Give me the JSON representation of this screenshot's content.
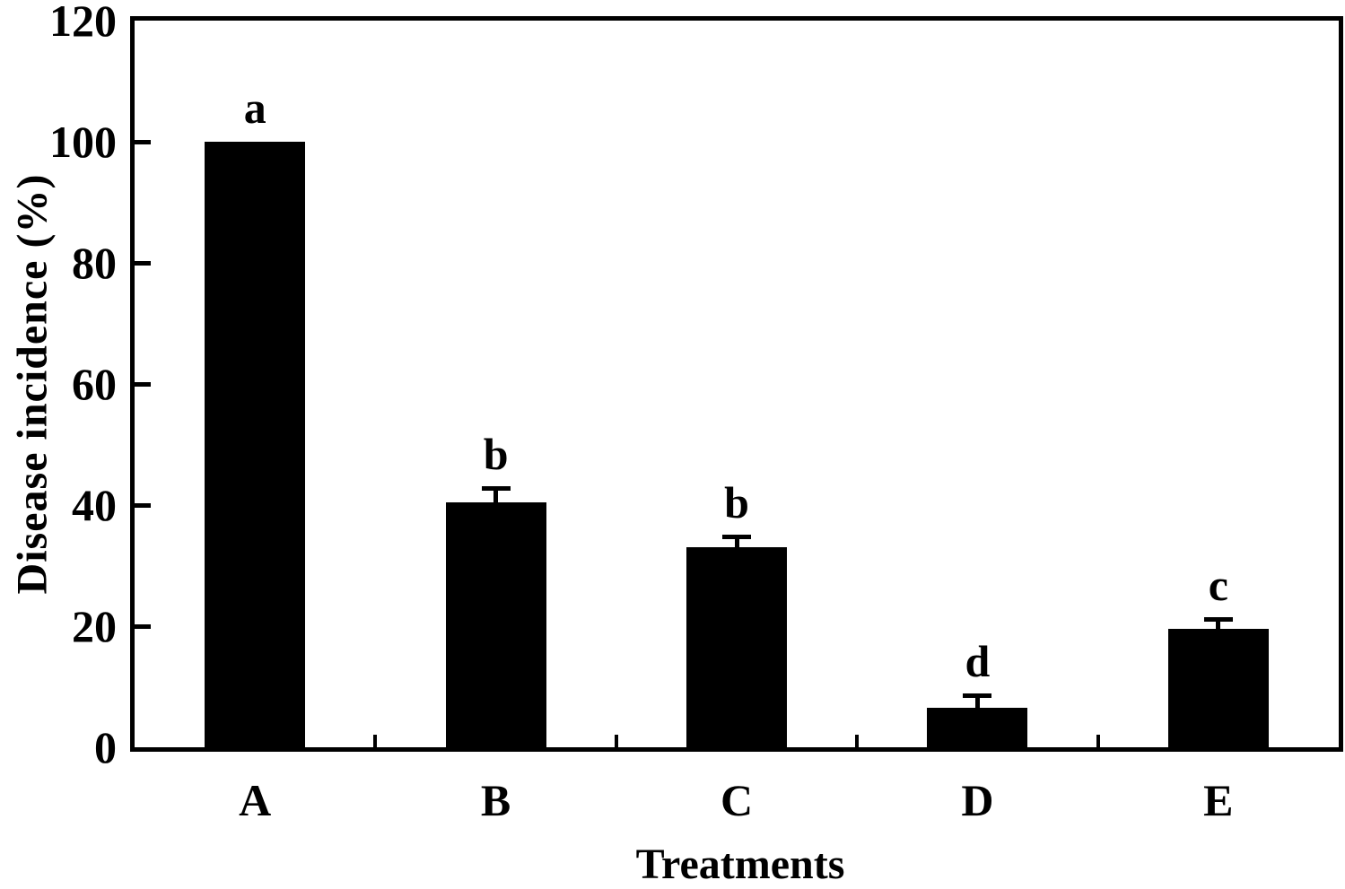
{
  "figure": {
    "background_color": "#ffffff",
    "ink_color": "#000000"
  },
  "chart_data": {
    "type": "bar",
    "title": "",
    "xlabel": "Treatments",
    "ylabel": "Disease incidence (%)",
    "categories": [
      "A",
      "B",
      "C",
      "D",
      "E"
    ],
    "values": [
      100,
      40.5,
      33,
      6.5,
      19.5
    ],
    "error_up": [
      0,
      2.3,
      1.8,
      2.1,
      1.7
    ],
    "sig_letters": [
      "a",
      "b",
      "b",
      "d",
      "c"
    ],
    "bar_color": "#000000",
    "ylim": [
      0,
      120
    ],
    "yticks": [
      0,
      20,
      40,
      60,
      80,
      100,
      120
    ],
    "grid": false,
    "legend": "none",
    "error_bar_direction": "up",
    "frame": "full-box",
    "tick_direction": "in"
  }
}
